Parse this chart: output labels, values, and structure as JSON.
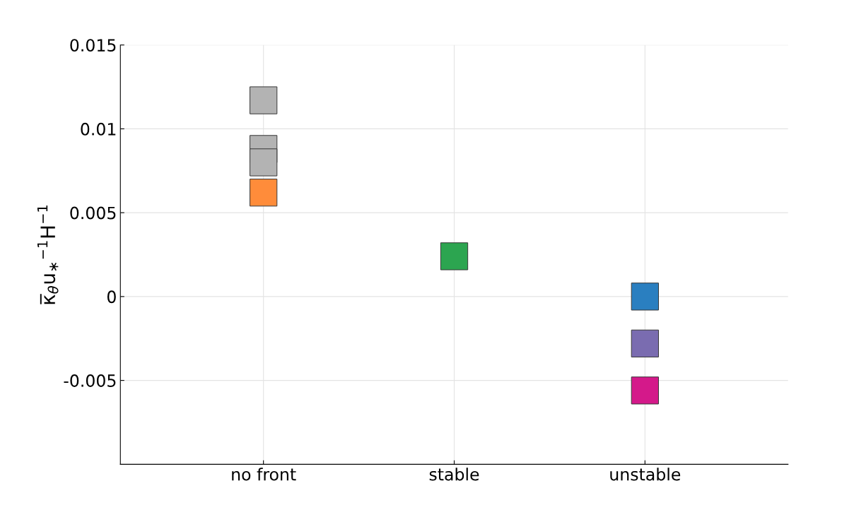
{
  "chart_data": {
    "type": "scatter",
    "ylabel": "κ̅$_{θ}$u$_{∗}$$^{−1}$H$^{−1}$",
    "categories": [
      "no front",
      "stable",
      "unstable"
    ],
    "series": [
      {
        "x": [
          "no front",
          "no front",
          "no front",
          "no front",
          "stable",
          "unstable",
          "unstable",
          "unstable"
        ],
        "values": [
          0.0117,
          0.0088,
          0.008,
          0.0062,
          0.0024,
          0.0,
          -0.0028,
          -0.0056
        ],
        "colors": [
          "#b3b3b3",
          "#b3b3b3",
          "#b3b3b3",
          "#ff8c3a",
          "#2ca550",
          "#2a7fc0",
          "#7a6cb0",
          "#d4198a"
        ]
      }
    ],
    "ylim": [
      -0.01,
      0.015
    ],
    "yticks": [
      -0.005,
      0,
      0.005,
      0.01,
      0.015
    ],
    "grid": true,
    "marker": "square"
  }
}
